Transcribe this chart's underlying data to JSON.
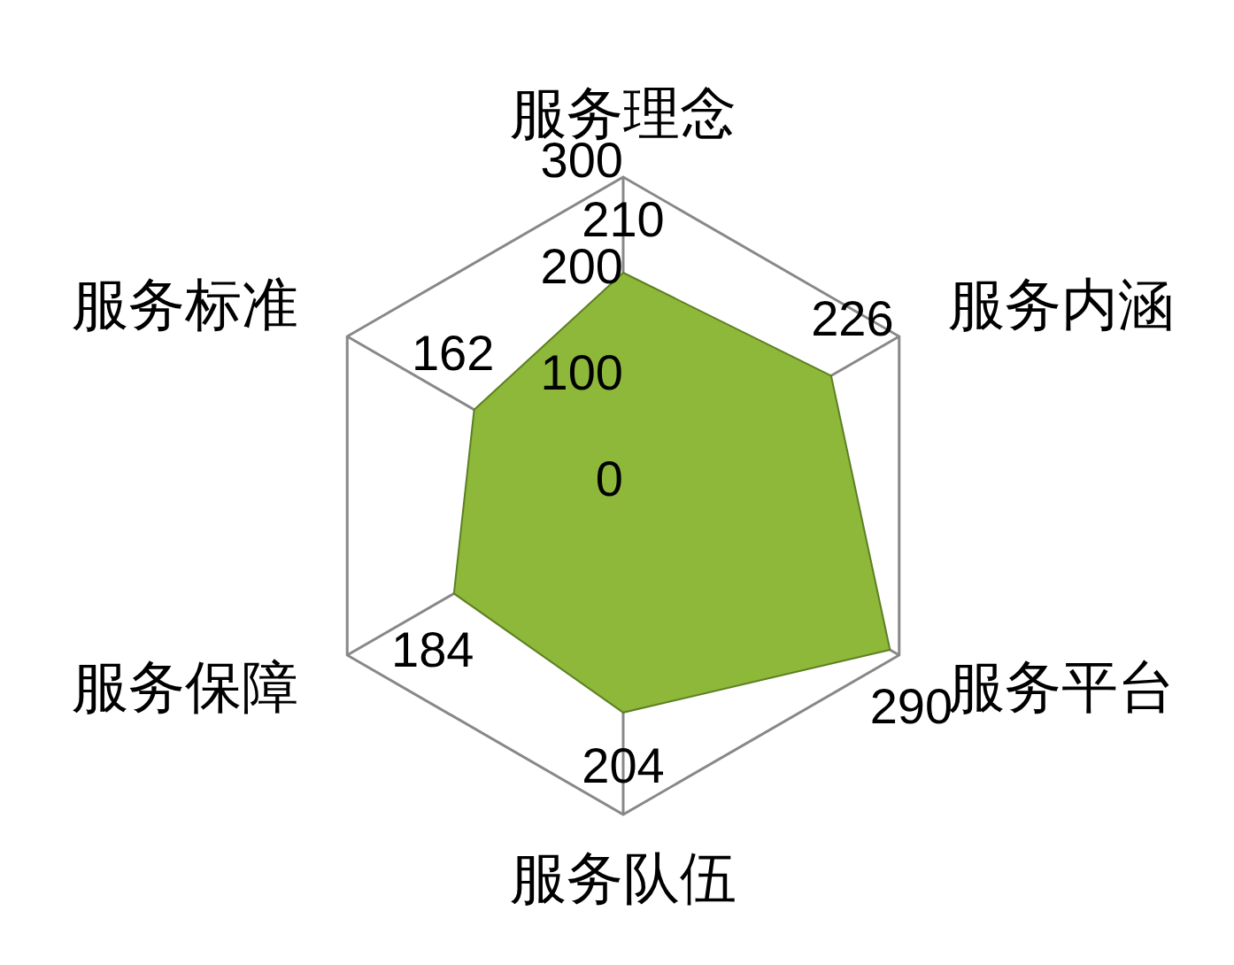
{
  "chart_data": {
    "type": "radar",
    "categories": [
      "服务理念",
      "服务内涵",
      "服务平台",
      "服务队伍",
      "服务保障",
      "服务标准"
    ],
    "series": [
      {
        "color": "#8db83a",
        "values": [
          210,
          226,
          290,
          204,
          184,
          162
        ]
      }
    ],
    "ylim": [
      0,
      300
    ],
    "yticks": [
      0,
      100,
      200,
      300
    ],
    "grid": true,
    "data_labels": true
  }
}
